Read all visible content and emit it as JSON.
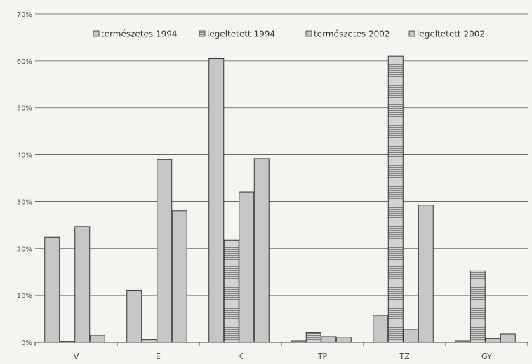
{
  "chart_data": {
    "type": "bar",
    "title": "",
    "xlabel": "",
    "ylabel": "",
    "categories": [
      "V",
      "E",
      "K",
      "TP",
      "TZ",
      "GY"
    ],
    "ylim": [
      0,
      70
    ],
    "yticks": [
      0,
      10,
      20,
      30,
      40,
      50,
      60,
      70
    ],
    "ytick_labels": [
      "0%",
      "10%",
      "20%",
      "30%",
      "40%",
      "50%",
      "60%",
      "70%"
    ],
    "grid": true,
    "legend_position": "top",
    "series": [
      {
        "name": "természetes 1994",
        "values": [
          22.4,
          11.0,
          60.5,
          0.3,
          5.7,
          0.3
        ],
        "color": "#c6c6c6",
        "pattern": "solid"
      },
      {
        "name": "legeltetett 1994",
        "values": [
          0.2,
          0.5,
          21.8,
          2.0,
          61.0,
          15.2
        ],
        "color": "#c6c6c6",
        "pattern": "hlines"
      },
      {
        "name": "természetes 2002",
        "values": [
          24.7,
          39.0,
          32.0,
          1.2,
          2.7,
          0.8
        ],
        "color": "#c6c6c6",
        "pattern": "solid"
      },
      {
        "name": "legeltetett 2002",
        "values": [
          1.5,
          28.0,
          39.2,
          1.1,
          29.2,
          1.8
        ],
        "color": "#c6c6c6",
        "pattern": "solid"
      }
    ]
  }
}
